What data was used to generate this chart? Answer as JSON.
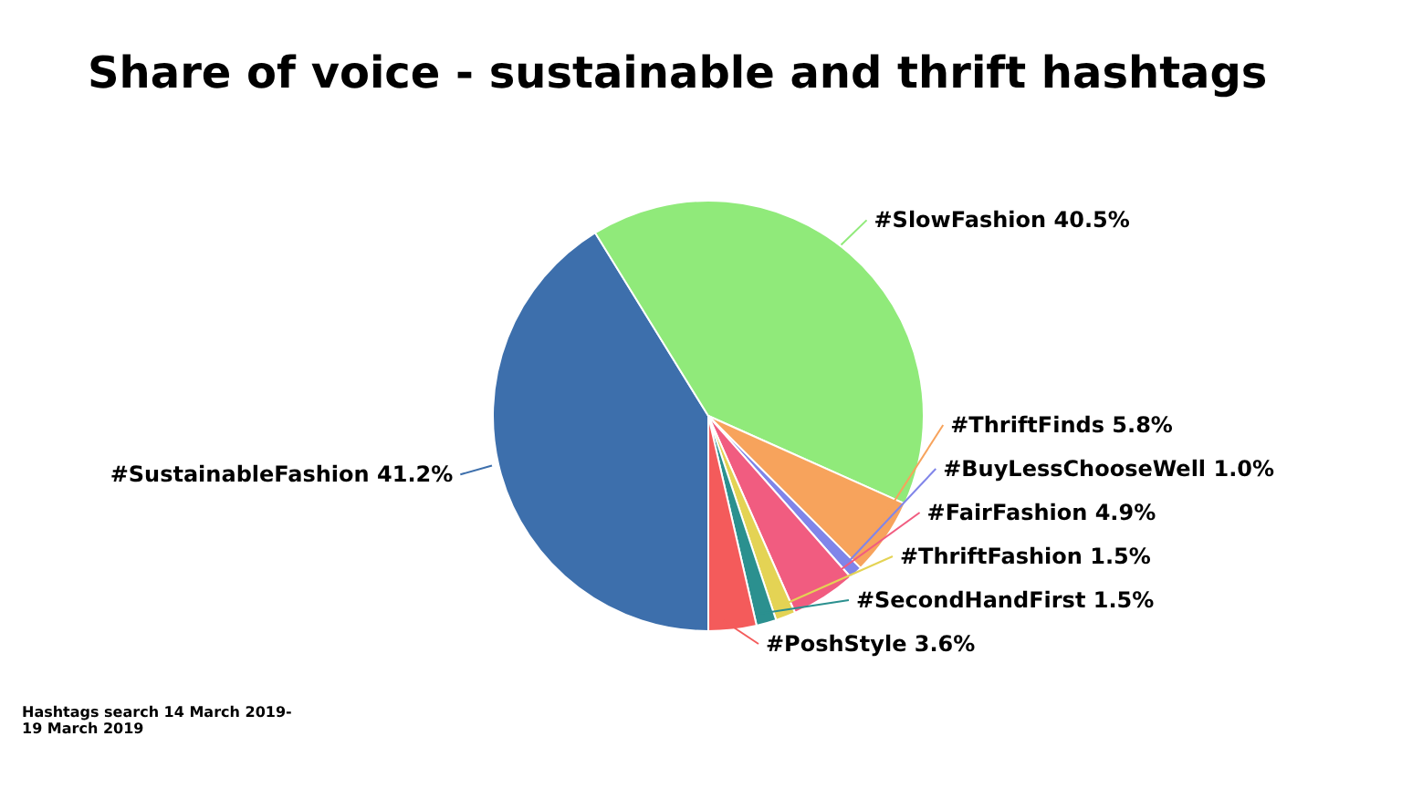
{
  "chart_data": {
    "type": "pie",
    "title": "Share of voice - sustainable and thrift hashtags",
    "categories": [
      "#SustainableFashion",
      "#SlowFashion",
      "#ThriftFinds",
      "#BuyLessChooseWell",
      "#FairFashion",
      "#ThriftFashion",
      "#SecondHandFirst",
      "#PoshStyle"
    ],
    "values": [
      41.2,
      40.5,
      5.8,
      1.0,
      4.9,
      1.5,
      1.5,
      3.6
    ],
    "value_labels": [
      "41.2%",
      "40.5%",
      "5.8%",
      "1.0%",
      "4.9%",
      "1.5%",
      "1.5%",
      "3.6%"
    ],
    "colors": [
      "#3d6fac",
      "#90ea7a",
      "#f7a35c",
      "#8085e9",
      "#f15c80",
      "#e4d354",
      "#2b908f",
      "#f45b5b"
    ],
    "annotations": [
      "Hashtags search 14 March 2019- 19 March 2019"
    ]
  }
}
